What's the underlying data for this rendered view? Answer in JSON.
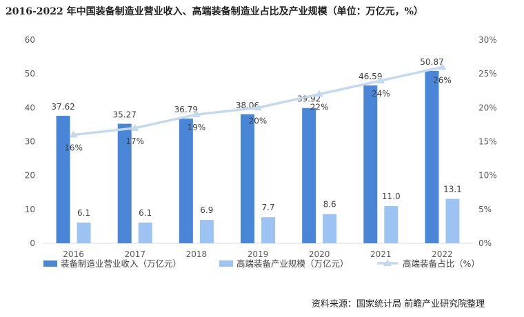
{
  "title": "2016-2022 年中国装备制造业营业收入、高端装备制造业占比及产业规模（单位：万亿元，%）",
  "source": "资料来源：国家统计局  前瞻产业研究院整理",
  "colors": {
    "revenue": "#4a86d8",
    "high_end": "#9dc3f2",
    "share": "#c4d9ec"
  },
  "chart_data": {
    "type": "bar",
    "categories": [
      "2016",
      "2017",
      "2018",
      "2019",
      "2020",
      "2021",
      "2022"
    ],
    "series": [
      {
        "name": "装备制造业营业收入（万亿元）",
        "type": "bar",
        "axis": "left",
        "values": [
          37.62,
          35.27,
          36.79,
          38.06,
          39.92,
          46.59,
          50.87
        ],
        "labels": [
          "37.62",
          "35.27",
          "36.79",
          "38.06",
          "39.92",
          "46.59",
          "50.87"
        ]
      },
      {
        "name": "高端装备产业规模（万亿元）",
        "type": "bar",
        "axis": "left",
        "values": [
          6.1,
          6.1,
          6.9,
          7.7,
          8.6,
          11.0,
          13.1
        ],
        "labels": [
          "6.1",
          "6.1",
          "6.9",
          "7.7",
          "8.6",
          "11.0",
          "13.1"
        ]
      },
      {
        "name": "高端装备占比（%）",
        "type": "line",
        "axis": "right",
        "values": [
          16,
          17,
          19,
          20,
          22,
          24,
          26
        ],
        "labels": [
          "16%",
          "17%",
          "19%",
          "20%",
          "22%",
          "24%",
          "26%"
        ]
      }
    ],
    "y_left": {
      "min": 0,
      "max": 60,
      "ticks": [
        "0",
        "10",
        "20",
        "30",
        "40",
        "50",
        "60"
      ]
    },
    "y_right": {
      "min": 0,
      "max": 30,
      "ticks": [
        "0%",
        "5%",
        "10%",
        "15%",
        "20%",
        "25%",
        "30%"
      ]
    },
    "grid": false,
    "legend_position": "bottom"
  }
}
